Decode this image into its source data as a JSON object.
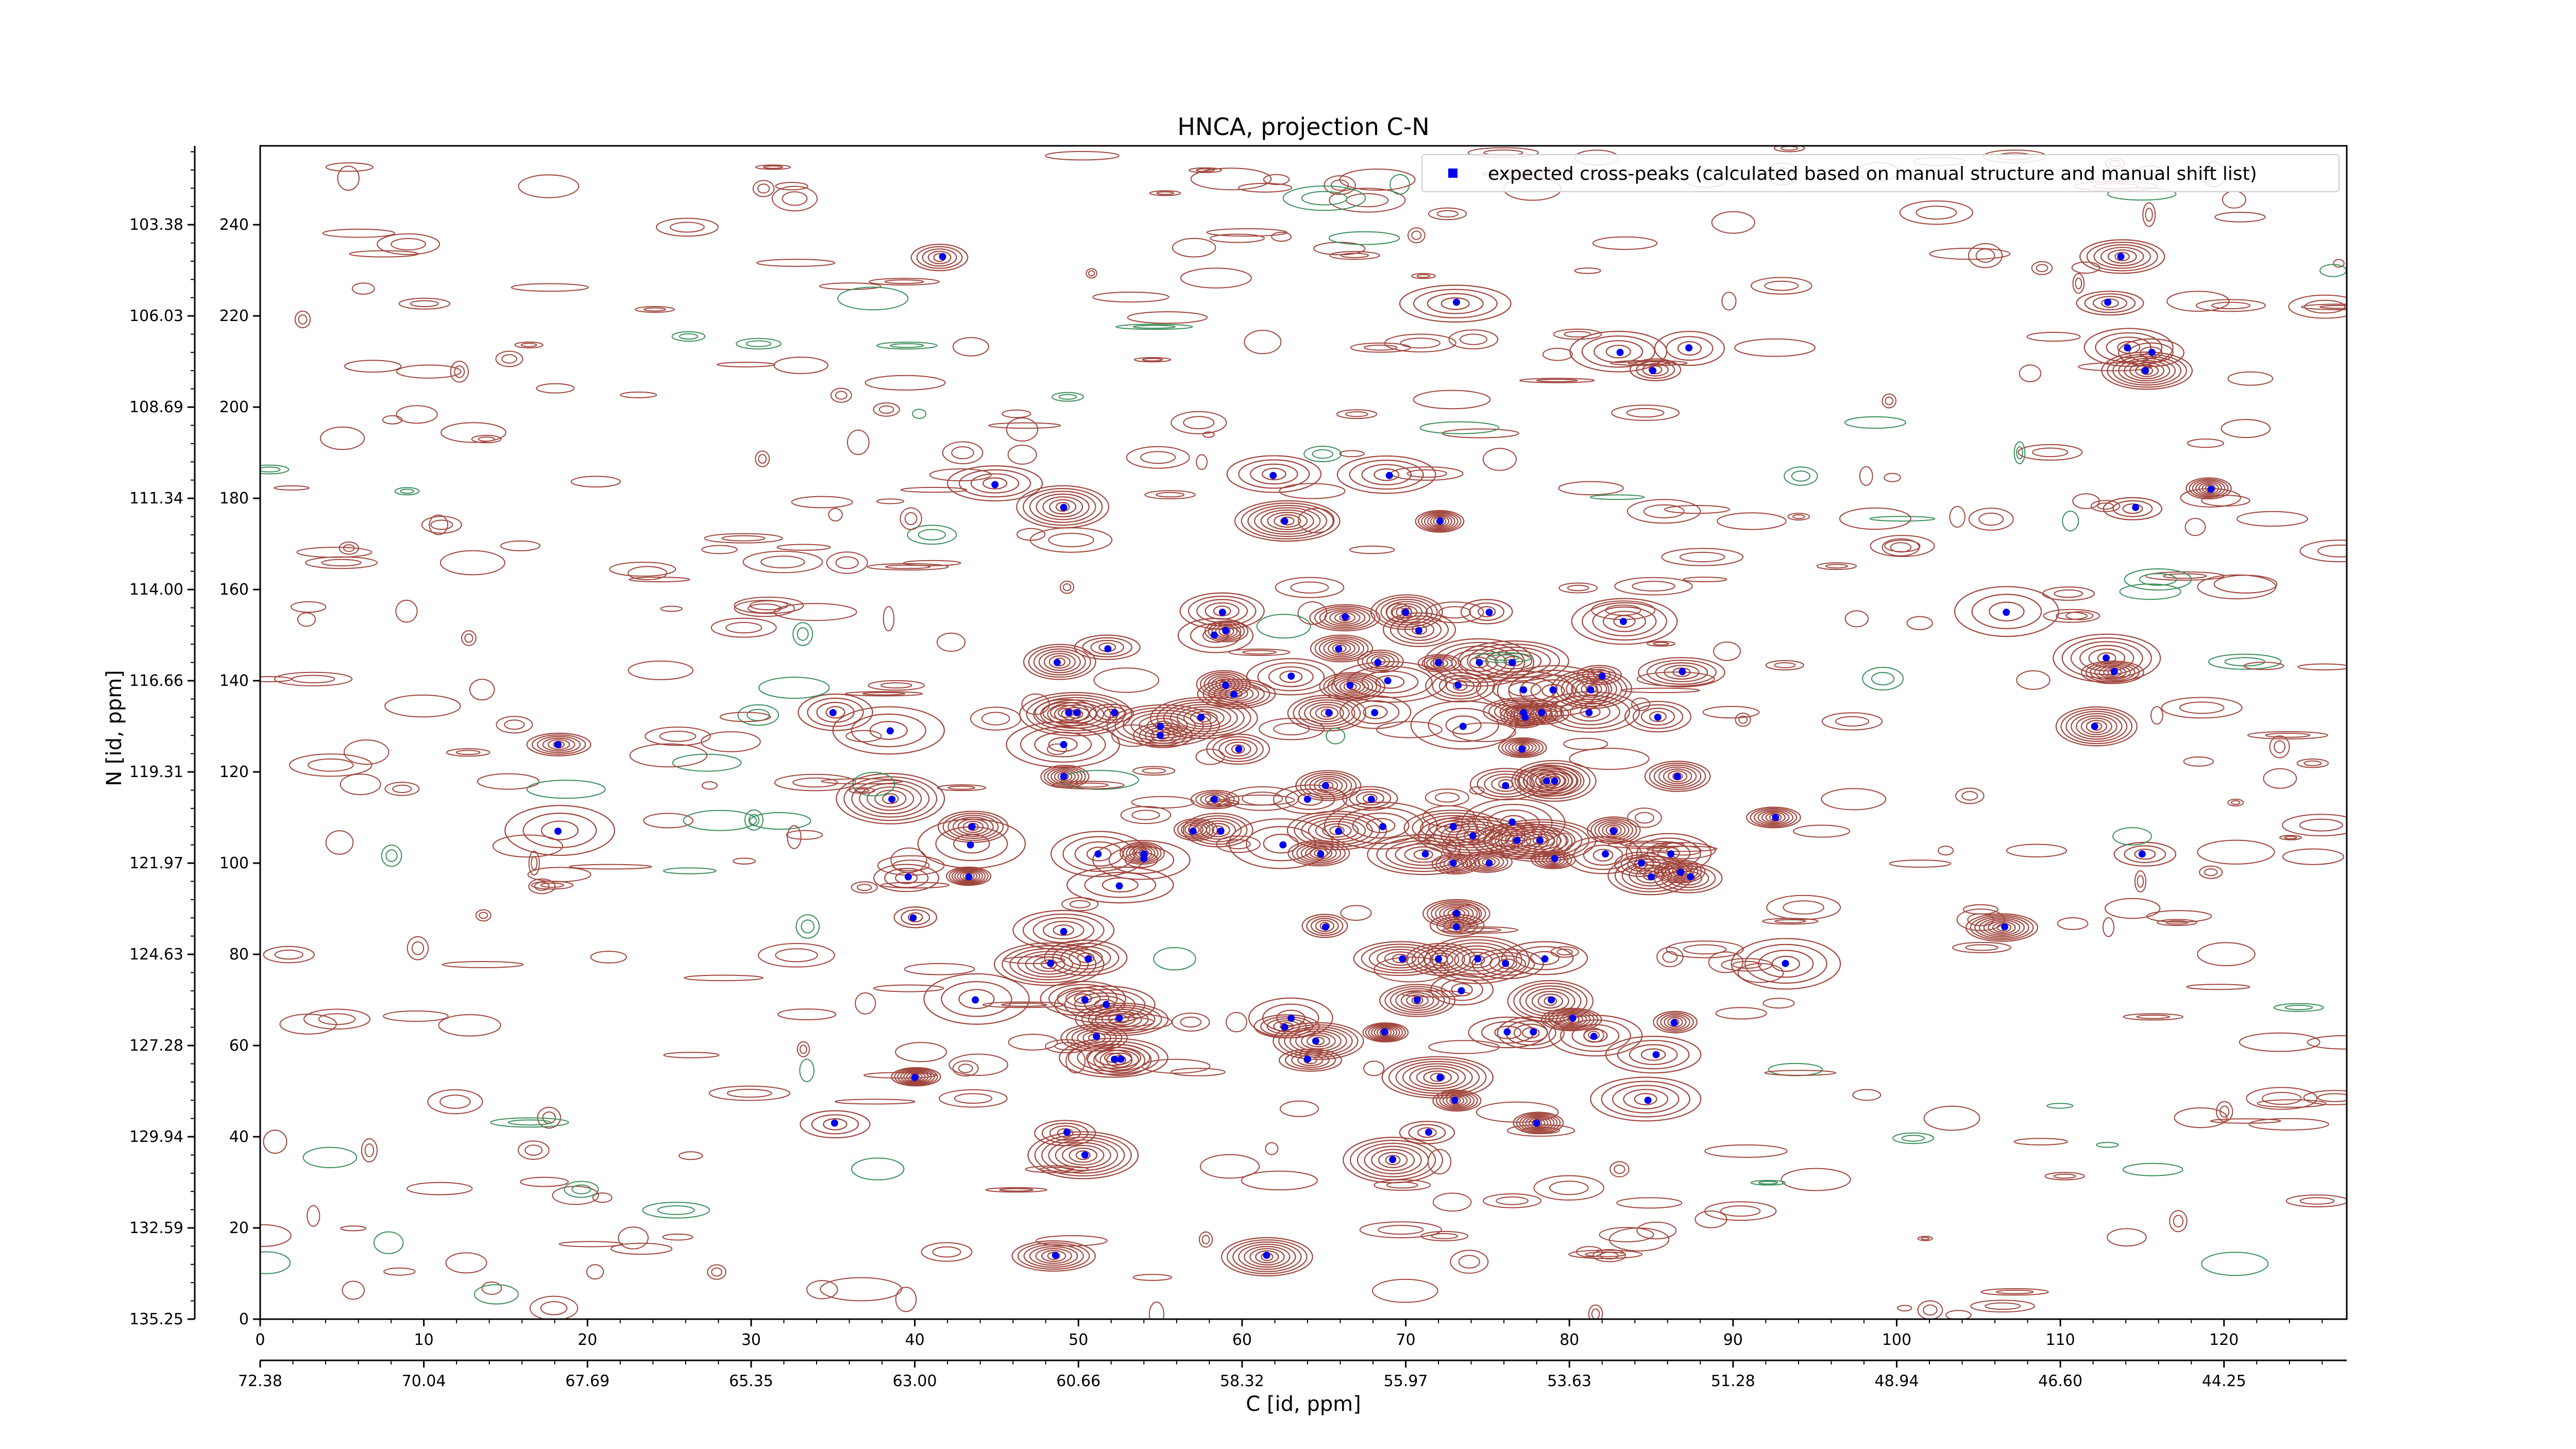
{
  "chart_data": {
    "type": "scatter",
    "title": "HNCA, projection C-N",
    "xlabel": "C [id, ppm]",
    "ylabel": "N [id, ppm]",
    "xlim": [
      0,
      127.5
    ],
    "ylim": [
      0,
      257.3
    ],
    "x_ticks": [
      0,
      10,
      20,
      30,
      40,
      50,
      60,
      70,
      80,
      90,
      100,
      110,
      120
    ],
    "y_ticks": [
      0,
      20,
      40,
      60,
      80,
      100,
      120,
      140,
      160,
      180,
      200,
      220,
      240
    ],
    "x_ppm_ticks": [
      "72.38",
      "70.04",
      "67.69",
      "65.35",
      "63.00",
      "60.66",
      "58.32",
      "55.97",
      "53.63",
      "51.28",
      "48.94",
      "46.60",
      "44.25"
    ],
    "y_ppm_ticks": [
      "135.25",
      "132.59",
      "129.94",
      "127.28",
      "124.63",
      "121.97",
      "119.31",
      "116.66",
      "114.00",
      "111.34",
      "108.69",
      "106.03",
      "103.38"
    ],
    "legend": {
      "location": "top-right",
      "label": "expected cross-peaks (calculated based on manual structure and manual shift list)"
    },
    "colors": {
      "peak_marker": "#0000ee",
      "positive_contour": "#a0453c",
      "negative_contour": "#3a8f5a"
    },
    "series": [
      {
        "name": "expected cross-peaks (calculated based on manual structure and manual shift list)",
        "points": [
          [
            41.7,
            233
          ],
          [
            73.1,
            223
          ],
          [
            112.9,
            223
          ],
          [
            113.7,
            233
          ],
          [
            83.1,
            212
          ],
          [
            85.1,
            208
          ],
          [
            87.3,
            213
          ],
          [
            115.6,
            212
          ],
          [
            114.1,
            213
          ],
          [
            115.2,
            208
          ],
          [
            44.9,
            183
          ],
          [
            49.1,
            178
          ],
          [
            61.9,
            185
          ],
          [
            69.0,
            185
          ],
          [
            62.6,
            175
          ],
          [
            72.1,
            175
          ],
          [
            114.6,
            178
          ],
          [
            119.2,
            182
          ],
          [
            58.8,
            155
          ],
          [
            58.3,
            150
          ],
          [
            59.0,
            151
          ],
          [
            48.7,
            144
          ],
          [
            51.8,
            147
          ],
          [
            65.9,
            147
          ],
          [
            66.3,
            154
          ],
          [
            70.0,
            155
          ],
          [
            75.1,
            155
          ],
          [
            70.8,
            151
          ],
          [
            83.3,
            153
          ],
          [
            106.7,
            155
          ],
          [
            68.3,
            144
          ],
          [
            72.0,
            144
          ],
          [
            74.5,
            144
          ],
          [
            76.5,
            144
          ],
          [
            68.9,
            140
          ],
          [
            73.2,
            139
          ],
          [
            77.2,
            138
          ],
          [
            79.0,
            138
          ],
          [
            81.3,
            138
          ],
          [
            82.0,
            141
          ],
          [
            86.9,
            142
          ],
          [
            112.8,
            145
          ],
          [
            113.3,
            142
          ],
          [
            59.0,
            139
          ],
          [
            59.5,
            137
          ],
          [
            66.6,
            139
          ],
          [
            63.0,
            141
          ],
          [
            35.0,
            133
          ],
          [
            38.5,
            129
          ],
          [
            18.2,
            126
          ],
          [
            49.4,
            133
          ],
          [
            49.9,
            133
          ],
          [
            52.2,
            133
          ],
          [
            55.0,
            130
          ],
          [
            55.0,
            128
          ],
          [
            57.5,
            132
          ],
          [
            59.8,
            125
          ],
          [
            49.1,
            126
          ],
          [
            49.1,
            119
          ],
          [
            65.3,
            133
          ],
          [
            68.1,
            133
          ],
          [
            73.5,
            130
          ],
          [
            77.2,
            133
          ],
          [
            77.3,
            132
          ],
          [
            78.3,
            133
          ],
          [
            81.2,
            133
          ],
          [
            85.4,
            132
          ],
          [
            77.1,
            125
          ],
          [
            112.1,
            130
          ],
          [
            76.1,
            117
          ],
          [
            79.1,
            118
          ],
          [
            78.6,
            118
          ],
          [
            86.6,
            119
          ],
          [
            65.1,
            117
          ],
          [
            64.0,
            114
          ],
          [
            67.9,
            114
          ],
          [
            38.6,
            114
          ],
          [
            58.3,
            114
          ],
          [
            43.5,
            108
          ],
          [
            43.4,
            104
          ],
          [
            18.2,
            107
          ],
          [
            51.2,
            102
          ],
          [
            54.0,
            102
          ],
          [
            54.0,
            101
          ],
          [
            57.0,
            107
          ],
          [
            58.7,
            107
          ],
          [
            43.3,
            97
          ],
          [
            39.6,
            97
          ],
          [
            52.5,
            95
          ],
          [
            39.9,
            88
          ],
          [
            62.5,
            104
          ],
          [
            64.8,
            102
          ],
          [
            65.9,
            107
          ],
          [
            68.6,
            108
          ],
          [
            71.2,
            102
          ],
          [
            72.9,
            108
          ],
          [
            72.9,
            100
          ],
          [
            75.1,
            100
          ],
          [
            74.1,
            106
          ],
          [
            76.8,
            105
          ],
          [
            76.5,
            109
          ],
          [
            79.1,
            101
          ],
          [
            78.2,
            105
          ],
          [
            82.2,
            102
          ],
          [
            82.7,
            107
          ],
          [
            84.4,
            100
          ],
          [
            85.0,
            97
          ],
          [
            86.2,
            102
          ],
          [
            86.8,
            98
          ],
          [
            87.4,
            97
          ],
          [
            92.6,
            110
          ],
          [
            115.0,
            102
          ],
          [
            65.1,
            86
          ],
          [
            73.1,
            86
          ],
          [
            73.1,
            89
          ],
          [
            49.1,
            85
          ],
          [
            106.6,
            86
          ],
          [
            69.8,
            79
          ],
          [
            72.0,
            79
          ],
          [
            74.4,
            79
          ],
          [
            76.1,
            78
          ],
          [
            78.5,
            79
          ],
          [
            48.3,
            78
          ],
          [
            50.6,
            79
          ],
          [
            93.2,
            78
          ],
          [
            43.7,
            70
          ],
          [
            50.4,
            70
          ],
          [
            51.7,
            69
          ],
          [
            52.5,
            66
          ],
          [
            52.2,
            57
          ],
          [
            52.6,
            57
          ],
          [
            51.1,
            62
          ],
          [
            62.6,
            64
          ],
          [
            63.0,
            66
          ],
          [
            64.5,
            61
          ],
          [
            64.0,
            57
          ],
          [
            68.7,
            63
          ],
          [
            70.7,
            70
          ],
          [
            73.4,
            72
          ],
          [
            76.2,
            63
          ],
          [
            77.8,
            63
          ],
          [
            78.9,
            70
          ],
          [
            80.2,
            66
          ],
          [
            81.5,
            62
          ],
          [
            85.3,
            58
          ],
          [
            86.4,
            65
          ],
          [
            40.0,
            53
          ],
          [
            72.1,
            53
          ],
          [
            73.0,
            48
          ],
          [
            84.8,
            48
          ],
          [
            35.1,
            43
          ],
          [
            49.3,
            41
          ],
          [
            50.4,
            36
          ],
          [
            69.2,
            35
          ],
          [
            71.4,
            41
          ],
          [
            78.0,
            43
          ],
          [
            48.6,
            14
          ],
          [
            61.5,
            14
          ]
        ]
      }
    ]
  }
}
